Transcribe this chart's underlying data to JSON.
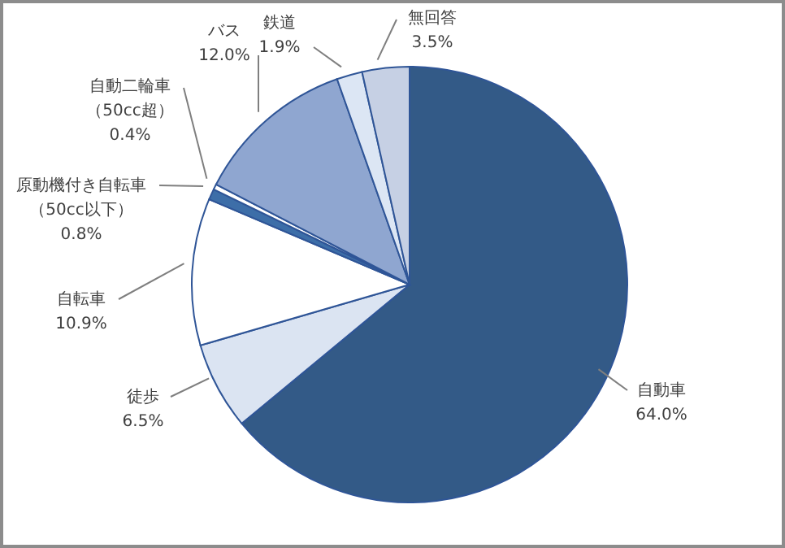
{
  "chart_data": {
    "type": "pie",
    "categories": [
      "自動車",
      "徒歩",
      "自転車",
      "原動機付き自転車（50cc以下）",
      "自動二輪車（50cc超）",
      "バス",
      "鉄道",
      "無回答"
    ],
    "values": [
      64.0,
      6.5,
      10.9,
      0.8,
      0.4,
      12.0,
      1.9,
      3.5
    ],
    "value_labels": [
      "64.0%",
      "6.5%",
      "10.9%",
      "0.8%",
      "0.4%",
      "12.0%",
      "1.9%",
      "3.5%"
    ],
    "colors": [
      "#335a87",
      "#dbe4f2",
      "#ffffff",
      "#3d6ea8",
      "#ffffff",
      "#8fa6d0",
      "#dce6f4",
      "#c6d0e4"
    ],
    "legend": false
  }
}
